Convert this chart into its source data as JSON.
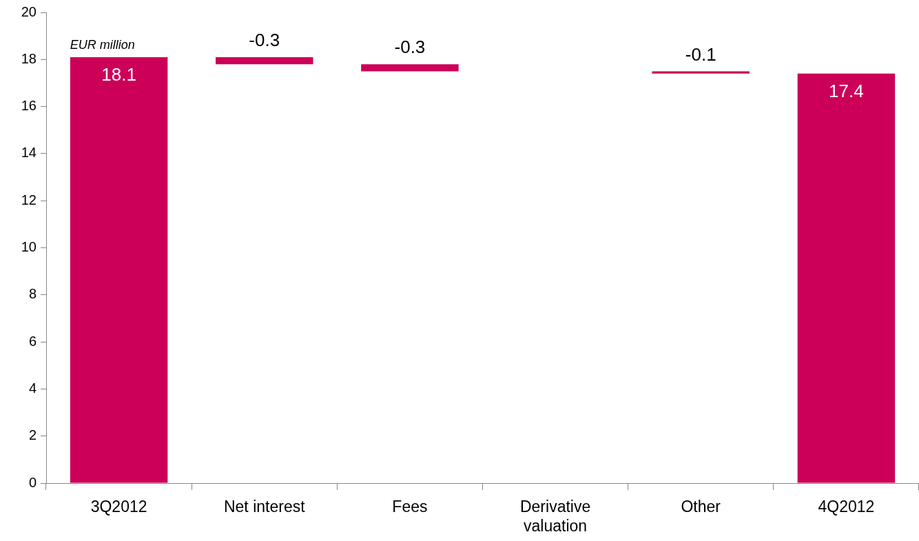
{
  "chart_data": {
    "type": "bar",
    "categories": [
      "3Q2012",
      "Net interest",
      "Fees",
      "Derivative valuation",
      "Other",
      "4Q2012"
    ],
    "values": [
      18.1,
      -0.3,
      -0.3,
      null,
      -0.1,
      17.4
    ],
    "base": [
      0,
      18.1,
      17.8,
      null,
      17.5,
      0
    ],
    "color": "#cc0058",
    "ylim": [
      0,
      20
    ],
    "yticks": [
      0,
      2,
      4,
      6,
      8,
      10,
      12,
      14,
      16,
      18,
      20
    ],
    "data_labels": true,
    "annotations": [
      "EUR million"
    ]
  }
}
